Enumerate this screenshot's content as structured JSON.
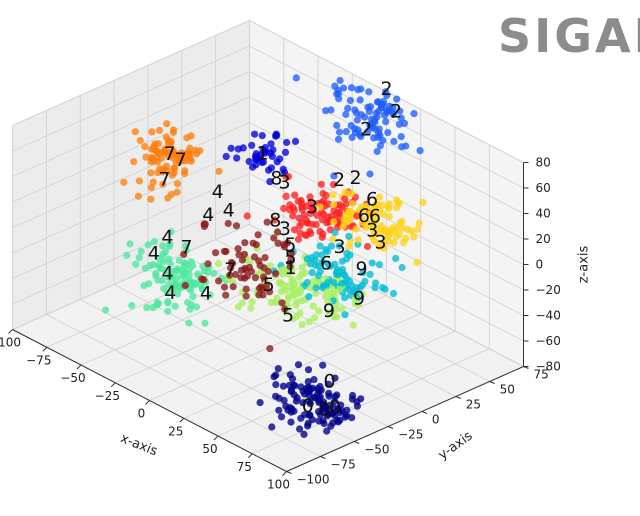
{
  "chart_data": {
    "type": "scatter",
    "dims": 3,
    "title": "",
    "xlabel": "x-axis",
    "ylabel": "y-axis",
    "zlabel": "z-axis",
    "xlim": [
      -100,
      100
    ],
    "ylim": [
      -100,
      75
    ],
    "zlim": [
      -80,
      80
    ],
    "xticks": [
      "−100",
      "−75",
      "−50",
      "−25",
      "0",
      "25",
      "50",
      "75",
      "100"
    ],
    "yticks": [
      "−100",
      "−75",
      "−50",
      "−25",
      "0",
      "25",
      "50",
      "75"
    ],
    "zticks": [
      "−80",
      "−60",
      "−40",
      "−20",
      "0",
      "20",
      "40",
      "60",
      "80"
    ],
    "grid": true,
    "colormap": "jet",
    "clusters": [
      {
        "label": "0",
        "color": "#00008b",
        "center": [
          80,
          -60,
          -55
        ],
        "spread": [
          14,
          10,
          8
        ],
        "n": 110
      },
      {
        "label": "1",
        "color": "#0000dd",
        "center": [
          -40,
          25,
          30
        ],
        "spread": [
          9,
          8,
          6
        ],
        "n": 40
      },
      {
        "label": "2",
        "color": "#1f5fff",
        "center": [
          0,
          65,
          65
        ],
        "spread": [
          12,
          10,
          14
        ],
        "n": 90
      },
      {
        "label": "3",
        "color": "#ff2020",
        "center": [
          5,
          20,
          15
        ],
        "spread": [
          12,
          10,
          8
        ],
        "n": 90
      },
      {
        "label": "4",
        "color": "#4de8a0",
        "center": [
          -60,
          -20,
          -55
        ],
        "spread": [
          13,
          11,
          10
        ],
        "n": 110
      },
      {
        "label": "5",
        "color": "#a8f060",
        "center": [
          20,
          -10,
          -25
        ],
        "spread": [
          18,
          12,
          10
        ],
        "n": 110
      },
      {
        "label": "6",
        "color": "#ffd21a",
        "center": [
          35,
          30,
          20
        ],
        "spread": [
          13,
          10,
          8
        ],
        "n": 100
      },
      {
        "label": "7",
        "color": "#ff7f0e",
        "center": [
          -90,
          5,
          10
        ],
        "spread": [
          10,
          9,
          10
        ],
        "n": 90
      },
      {
        "label": "8",
        "color": "#8b1a1a",
        "center": [
          10,
          -40,
          5
        ],
        "spread": [
          14,
          12,
          14
        ],
        "n": 70
      },
      {
        "label": "9",
        "color": "#00bcd4",
        "center": [
          40,
          0,
          -10
        ],
        "spread": [
          14,
          10,
          10
        ],
        "n": 80
      }
    ],
    "annotations": [
      {
        "text": "2",
        "at": [
          5,
          70,
          88
        ]
      },
      {
        "text": "2",
        "at": [
          10,
          72,
          72
        ]
      },
      {
        "text": "2",
        "at": [
          0,
          60,
          58
        ]
      },
      {
        "text": "2",
        "at": [
          12,
          40,
          36
        ]
      },
      {
        "text": "2",
        "at": [
          2,
          38,
          30
        ]
      },
      {
        "text": "6",
        "at": [
          28,
          36,
          30
        ]
      },
      {
        "text": "1",
        "at": [
          -42,
          26,
          32
        ]
      },
      {
        "text": "8",
        "at": [
          -28,
          22,
          22
        ]
      },
      {
        "text": "3",
        "at": [
          -20,
          20,
          24
        ]
      },
      {
        "text": "3",
        "at": [
          0,
          20,
          16
        ]
      },
      {
        "text": "6",
        "at": [
          30,
          28,
          22
        ]
      },
      {
        "text": "6",
        "at": [
          38,
          28,
          26
        ]
      },
      {
        "text": "3",
        "at": [
          42,
          22,
          20
        ]
      },
      {
        "text": "3",
        "at": [
          52,
          18,
          18
        ]
      },
      {
        "text": "8",
        "at": [
          -12,
          5,
          6
        ]
      },
      {
        "text": "3",
        "at": [
          -4,
          4,
          4
        ]
      },
      {
        "text": "5",
        "at": [
          4,
          0,
          -2
        ]
      },
      {
        "text": "3",
        "at": [
          30,
          10,
          6
        ]
      },
      {
        "text": "9",
        "at": [
          48,
          8,
          0
        ]
      },
      {
        "text": "7",
        "at": [
          -92,
          8,
          12
        ]
      },
      {
        "text": "7",
        "at": [
          -84,
          8,
          12
        ]
      },
      {
        "text": "7",
        "at": [
          -88,
          0,
          -2
        ]
      },
      {
        "text": "4",
        "at": [
          -55,
          6,
          4
        ]
      },
      {
        "text": "4",
        "at": [
          -45,
          4,
          -4
        ]
      },
      {
        "text": "4",
        "at": [
          -52,
          -4,
          -8
        ]
      },
      {
        "text": "5",
        "at": [
          8,
          -4,
          -8
        ]
      },
      {
        "text": "6",
        "at": [
          28,
          2,
          -4
        ]
      },
      {
        "text": "1",
        "at": [
          10,
          -6,
          -14
        ]
      },
      {
        "text": "9",
        "at": [
          60,
          -6,
          -10
        ]
      },
      {
        "text": "4",
        "at": [
          -70,
          -16,
          -30
        ]
      },
      {
        "text": "7",
        "at": [
          -58,
          -14,
          -32
        ]
      },
      {
        "text": "7",
        "at": [
          -26,
          -14,
          -32
        ]
      },
      {
        "text": "4",
        "at": [
          -74,
          -22,
          -42
        ]
      },
      {
        "text": "4",
        "at": [
          -62,
          -24,
          -50
        ]
      },
      {
        "text": "4",
        "at": [
          -54,
          -30,
          -58
        ]
      },
      {
        "text": "4",
        "at": [
          -30,
          -28,
          -46
        ]
      },
      {
        "text": "5",
        "at": [
          0,
          -12,
          -30
        ]
      },
      {
        "text": "5",
        "at": [
          20,
          -18,
          -40
        ]
      },
      {
        "text": "9",
        "at": [
          42,
          -10,
          -28
        ]
      },
      {
        "text": "0",
        "at": [
          82,
          -50,
          -42
        ]
      },
      {
        "text": "0",
        "at": [
          88,
          -60,
          -56
        ]
      },
      {
        "text": "0",
        "at": [
          78,
          -62,
          -58
        ]
      },
      {
        "text": "0",
        "at": [
          94,
          -58,
          -52
        ]
      }
    ]
  },
  "watermark": "SIGAI"
}
